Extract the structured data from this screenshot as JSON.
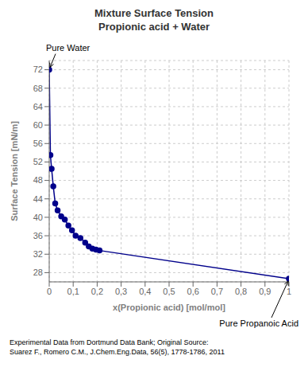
{
  "chart_data": {
    "type": "line",
    "title": "Mixture Surface Tension",
    "subtitle": "Propionic acid + Water",
    "x_label": "x(Propionic acid) [mol/mol]",
    "y_label": "Surface Tension [mN/m]",
    "x": [
      0.0,
      0.005,
      0.01,
      0.017,
      0.025,
      0.035,
      0.05,
      0.065,
      0.08,
      0.095,
      0.11,
      0.13,
      0.15,
      0.165,
      0.18,
      0.195,
      0.21,
      1.0
    ],
    "series": [
      {
        "values": [
          72.0,
          53.5,
          50.5,
          46.7,
          43.0,
          41.5,
          40.2,
          39.5,
          38.2,
          37.2,
          36.0,
          35.5,
          34.5,
          33.7,
          33.2,
          33.0,
          32.8,
          26.7
        ],
        "color": "#00008B",
        "marker": "circle"
      }
    ],
    "xlim": [
      0,
      1
    ],
    "ylim": [
      26,
      74
    ],
    "xticks": [
      0,
      {
        "value": 0.1,
        "label": "0,1"
      },
      {
        "value": 0.2,
        "label": "0,2"
      },
      {
        "value": 0.3,
        "label": "0,3"
      },
      {
        "value": 0.4,
        "label": "0,4"
      },
      {
        "value": 0.5,
        "label": "0,5"
      },
      {
        "value": 0.6,
        "label": "0,6"
      },
      {
        "value": 0.7,
        "label": "0,7"
      },
      {
        "value": 0.8,
        "label": "0,8"
      },
      {
        "value": 0.9,
        "label": "0,9"
      },
      1
    ],
    "yticks": [
      28,
      32,
      36,
      40,
      44,
      48,
      52,
      56,
      60,
      64,
      68,
      72
    ],
    "grid": true,
    "annotations": [
      {
        "text": "Pure Water",
        "x": 0,
        "y": 72
      },
      {
        "text": "Pure Propanoic Acid",
        "x": 1,
        "y": 26.7
      }
    ],
    "footnote": [
      "Experimental Data from Dortmund Data Bank; Original Source:",
      "Suarez F., Romero C.M., J.Chem.Eng.Data, 56(5), 1778-1786, 2011"
    ]
  }
}
